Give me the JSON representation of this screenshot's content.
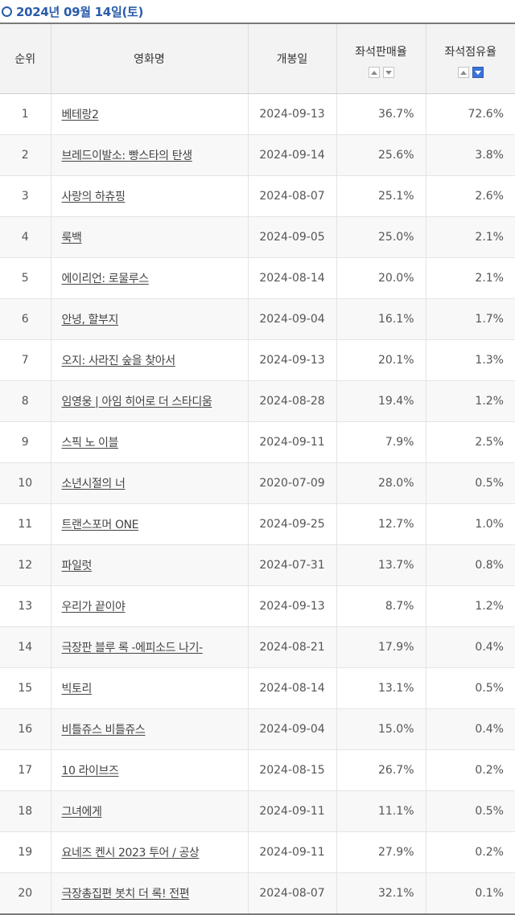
{
  "date_label": "2024년 09월 14일(토)",
  "table": {
    "headers": {
      "rank": "순위",
      "title": "영화명",
      "release": "개봉일",
      "sales_rate": "좌석판매율",
      "share_rate": "좌석점유율"
    },
    "sort_icons": {
      "up": "sort-ascending-icon",
      "down": "sort-descending-icon",
      "active_column": "share_rate",
      "active_direction": "down",
      "active_color": "#3c73d8"
    },
    "rows": [
      {
        "rank": "1",
        "title": "베테랑2",
        "release": "2024-09-13",
        "sales_rate": "36.7%",
        "share_rate": "72.6%"
      },
      {
        "rank": "2",
        "title": "브레드이발소: 빵스타의 탄생",
        "release": "2024-09-14",
        "sales_rate": "25.6%",
        "share_rate": "3.8%"
      },
      {
        "rank": "3",
        "title": "사랑의 하츄핑",
        "release": "2024-08-07",
        "sales_rate": "25.1%",
        "share_rate": "2.6%"
      },
      {
        "rank": "4",
        "title": "룩백",
        "release": "2024-09-05",
        "sales_rate": "25.0%",
        "share_rate": "2.1%"
      },
      {
        "rank": "5",
        "title": "에이리언: 로물루스",
        "release": "2024-08-14",
        "sales_rate": "20.0%",
        "share_rate": "2.1%"
      },
      {
        "rank": "6",
        "title": "안녕, 할부지",
        "release": "2024-09-04",
        "sales_rate": "16.1%",
        "share_rate": "1.7%"
      },
      {
        "rank": "7",
        "title": "오지: 사라진 숲을 찾아서",
        "release": "2024-09-13",
        "sales_rate": "20.1%",
        "share_rate": "1.3%"
      },
      {
        "rank": "8",
        "title": "임영웅 | 아임 히어로 더 스타디움",
        "release": "2024-08-28",
        "sales_rate": "19.4%",
        "share_rate": "1.2%"
      },
      {
        "rank": "9",
        "title": "스픽 노 이블",
        "release": "2024-09-11",
        "sales_rate": "7.9%",
        "share_rate": "2.5%"
      },
      {
        "rank": "10",
        "title": "소년시절의 너",
        "release": "2020-07-09",
        "sales_rate": "28.0%",
        "share_rate": "0.5%"
      },
      {
        "rank": "11",
        "title": "트랜스포머 ONE",
        "release": "2024-09-25",
        "sales_rate": "12.7%",
        "share_rate": "1.0%"
      },
      {
        "rank": "12",
        "title": "파일럿",
        "release": "2024-07-31",
        "sales_rate": "13.7%",
        "share_rate": "0.8%"
      },
      {
        "rank": "13",
        "title": "우리가 끝이야",
        "release": "2024-09-13",
        "sales_rate": "8.7%",
        "share_rate": "1.2%"
      },
      {
        "rank": "14",
        "title": "극장판 블루 록 -에피소드 나기-",
        "release": "2024-08-21",
        "sales_rate": "17.9%",
        "share_rate": "0.4%"
      },
      {
        "rank": "15",
        "title": "빅토리",
        "release": "2024-08-14",
        "sales_rate": "13.1%",
        "share_rate": "0.5%"
      },
      {
        "rank": "16",
        "title": "비틀쥬스 비틀쥬스",
        "release": "2024-09-04",
        "sales_rate": "15.0%",
        "share_rate": "0.4%"
      },
      {
        "rank": "17",
        "title": "10 라이브즈",
        "release": "2024-08-15",
        "sales_rate": "26.7%",
        "share_rate": "0.2%"
      },
      {
        "rank": "18",
        "title": "그녀에게",
        "release": "2024-09-11",
        "sales_rate": "11.1%",
        "share_rate": "0.5%"
      },
      {
        "rank": "19",
        "title": "요네즈 켄시 2023 투어 / 공상",
        "release": "2024-09-11",
        "sales_rate": "27.9%",
        "share_rate": "0.2%"
      },
      {
        "rank": "20",
        "title": "극장총집편 봇치 더 록! 전편",
        "release": "2024-08-07",
        "sales_rate": "32.1%",
        "share_rate": "0.1%"
      }
    ]
  },
  "colors": {
    "accent_blue": "#2a5caa",
    "header_bg": "#f3f3f3",
    "even_row_bg": "#f8f8f8"
  }
}
